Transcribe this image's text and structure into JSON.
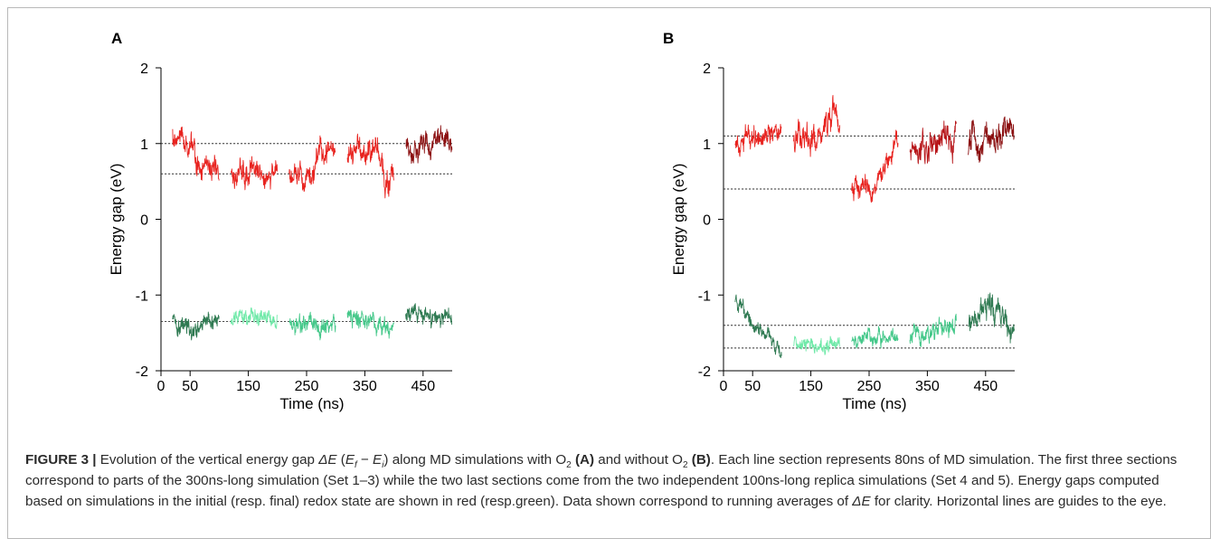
{
  "figure": {
    "caption": {
      "label": "FIGURE 3 |",
      "p1": " Evolution of the vertical energy gap ",
      "sym": "ΔE",
      "p2": " (",
      "ef": "E",
      "ef_sub": "f",
      "minus": " − ",
      "ei": "E",
      "ei_sub": "i",
      "p3": ") along MD simulations with O",
      "o2_sub": "2",
      "p4": " ",
      "refA": "(A)",
      "p5": " and without O",
      "o2_sub2": "2",
      "p6": " ",
      "refB": "(B)",
      "p7": ". Each line section represents 80ns of MD simulation. The first three sections correspond to parts of the 300ns-long simulation (Set 1–3) while the two last sections come from the two independent 100ns-long replica simulations (Set 4 and 5). Energy gaps computed based on simulations in the initial (resp. final) redox state are shown in red (resp.green). Data shown correspond to running averages of ",
      "sym2": "ΔE",
      "p8": " for clarity. Horizontal lines are guides to the eye."
    }
  },
  "chart_data": [
    {
      "panel": "A",
      "type": "line",
      "xlabel": "Time (ns)",
      "ylabel": "Energy gap (eV)",
      "xlim": [
        0,
        500
      ],
      "ylim": [
        -2,
        2
      ],
      "xticks": [
        0,
        50,
        150,
        250,
        350,
        450
      ],
      "yticks": [
        2,
        1,
        0,
        -1,
        -2
      ],
      "guide_lines": [
        1.0,
        0.6,
        -1.35
      ],
      "series": [
        {
          "color": "#e8231f",
          "start": 20,
          "end": 100,
          "profile": [
            [
              20,
              1.1
            ],
            [
              40,
              1.05
            ],
            [
              55,
              0.95
            ],
            [
              62,
              0.72
            ],
            [
              100,
              0.6
            ]
          ],
          "noise": 0.12
        },
        {
          "color": "#e8231f",
          "start": 120,
          "end": 200,
          "profile": [
            [
              120,
              0.62
            ],
            [
              200,
              0.62
            ]
          ],
          "noise": 0.12
        },
        {
          "color": "#e8231f",
          "start": 220,
          "end": 300,
          "profile": [
            [
              220,
              0.55
            ],
            [
              262,
              0.55
            ],
            [
              268,
              0.85
            ],
            [
              300,
              0.88
            ]
          ],
          "noise": 0.12
        },
        {
          "color": "#e8231f",
          "start": 320,
          "end": 400,
          "profile": [
            [
              320,
              0.85
            ],
            [
              370,
              0.95
            ],
            [
              380,
              0.7
            ],
            [
              385,
              0.5
            ],
            [
              400,
              0.5
            ]
          ],
          "noise": 0.12
        },
        {
          "color": "#8b0f10",
          "start": 420,
          "end": 500,
          "profile": [
            [
              420,
              0.95
            ],
            [
              500,
              1.05
            ]
          ],
          "noise": 0.11
        },
        {
          "color": "#2f7a52",
          "start": 20,
          "end": 100,
          "profile": [
            [
              20,
              -1.38
            ],
            [
              60,
              -1.45
            ],
            [
              100,
              -1.3
            ]
          ],
          "noise": 0.1
        },
        {
          "color": "#6fe9a8",
          "start": 120,
          "end": 200,
          "profile": [
            [
              120,
              -1.32
            ],
            [
              200,
              -1.32
            ]
          ],
          "noise": 0.08
        },
        {
          "color": "#45c88a",
          "start": 220,
          "end": 300,
          "profile": [
            [
              220,
              -1.38
            ],
            [
              300,
              -1.38
            ]
          ],
          "noise": 0.09
        },
        {
          "color": "#45c88a",
          "start": 320,
          "end": 400,
          "profile": [
            [
              320,
              -1.3
            ],
            [
              360,
              -1.38
            ],
            [
              400,
              -1.45
            ]
          ],
          "noise": 0.09
        },
        {
          "color": "#2f7a52",
          "start": 420,
          "end": 500,
          "profile": [
            [
              420,
              -1.25
            ],
            [
              460,
              -1.35
            ],
            [
              500,
              -1.35
            ]
          ],
          "noise": 0.09
        }
      ]
    },
    {
      "panel": "B",
      "type": "line",
      "xlabel": "Time (ns)",
      "ylabel": "Energy gap (eV)",
      "xlim": [
        0,
        500
      ],
      "ylim": [
        -2,
        2
      ],
      "xticks": [
        0,
        50,
        150,
        250,
        350,
        450
      ],
      "yticks": [
        2,
        1,
        0,
        -1,
        -2
      ],
      "guide_lines": [
        1.1,
        0.4,
        -1.4,
        -1.7
      ],
      "series": [
        {
          "color": "#e8231f",
          "start": 20,
          "end": 100,
          "profile": [
            [
              20,
              1.05
            ],
            [
              100,
              1.2
            ]
          ],
          "noise": 0.11
        },
        {
          "color": "#e8231f",
          "start": 120,
          "end": 200,
          "profile": [
            [
              120,
              1.2
            ],
            [
              160,
              1.0
            ],
            [
              185,
              1.3
            ],
            [
              190,
              1.6
            ],
            [
              200,
              1.1
            ]
          ],
          "noise": 0.14
        },
        {
          "color": "#e8231f",
          "start": 220,
          "end": 300,
          "profile": [
            [
              220,
              0.45
            ],
            [
              260,
              0.35
            ],
            [
              280,
              0.75
            ],
            [
              300,
              1.0
            ]
          ],
          "noise": 0.1
        },
        {
          "color": "#b71519",
          "start": 320,
          "end": 400,
          "profile": [
            [
              320,
              0.95
            ],
            [
              400,
              1.1
            ]
          ],
          "noise": 0.14
        },
        {
          "color": "#8b0f10",
          "start": 420,
          "end": 500,
          "profile": [
            [
              420,
              1.0
            ],
            [
              500,
              1.25
            ]
          ],
          "noise": 0.14
        },
        {
          "color": "#2f7a52",
          "start": 20,
          "end": 100,
          "profile": [
            [
              20,
              -1.05
            ],
            [
              40,
              -1.3
            ],
            [
              70,
              -1.5
            ],
            [
              100,
              -1.75
            ]
          ],
          "noise": 0.07
        },
        {
          "color": "#6fe9a8",
          "start": 120,
          "end": 200,
          "profile": [
            [
              120,
              -1.65
            ],
            [
              200,
              -1.65
            ]
          ],
          "noise": 0.07
        },
        {
          "color": "#45c88a",
          "start": 220,
          "end": 300,
          "profile": [
            [
              220,
              -1.55
            ],
            [
              300,
              -1.55
            ]
          ],
          "noise": 0.07
        },
        {
          "color": "#45c88a",
          "start": 320,
          "end": 400,
          "profile": [
            [
              320,
              -1.55
            ],
            [
              400,
              -1.4
            ]
          ],
          "noise": 0.09
        },
        {
          "color": "#2f7a52",
          "start": 420,
          "end": 500,
          "profile": [
            [
              420,
              -1.4
            ],
            [
              460,
              -1.1
            ],
            [
              500,
              -1.55
            ]
          ],
          "noise": 0.12
        }
      ]
    }
  ]
}
